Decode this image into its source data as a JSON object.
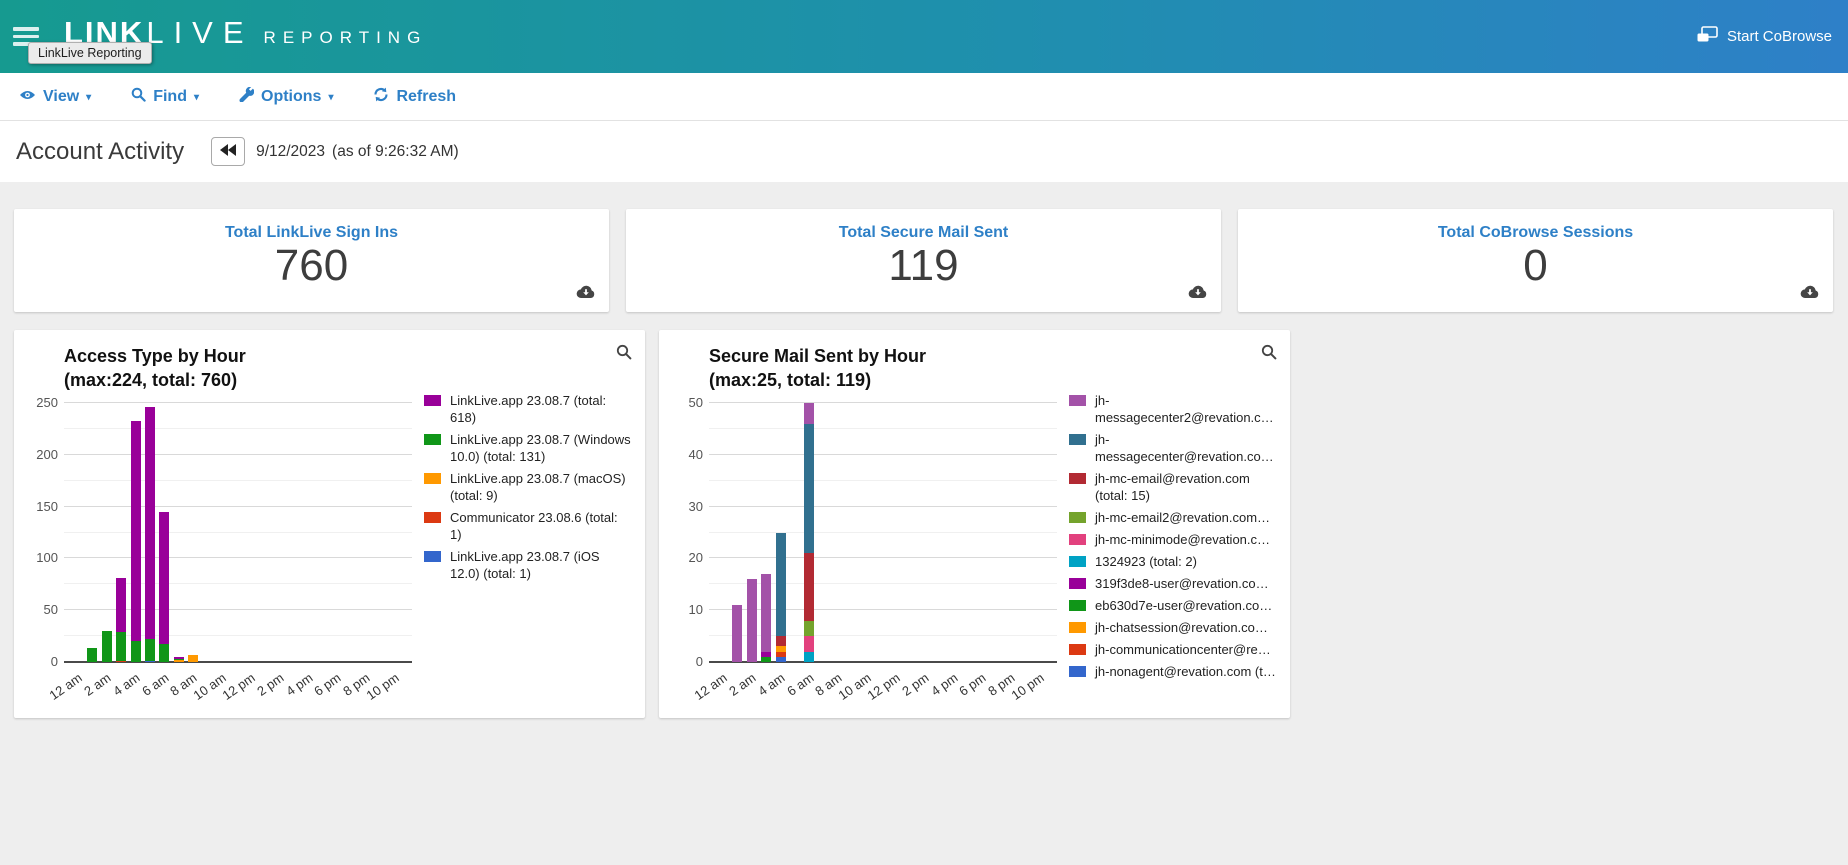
{
  "header": {
    "brand": {
      "part1": "LINK",
      "part2": "LIVE",
      "part3": "REPORTING"
    },
    "tooltip": "LinkLive Reporting",
    "cobrowse_label": "Start CoBrowse"
  },
  "toolbar": {
    "view_label": "View",
    "find_label": "Find",
    "options_label": "Options",
    "refresh_label": "Refresh",
    "caret": "▾"
  },
  "page": {
    "title": "Account Activity",
    "date": "9/12/2023",
    "as_of": "(as of 9:26:32 AM)"
  },
  "stats": [
    {
      "label": "Total LinkLive Sign Ins",
      "value": "760"
    },
    {
      "label": "Total Secure Mail Sent",
      "value": "119"
    },
    {
      "label": "Total CoBrowse Sessions",
      "value": "0"
    }
  ],
  "colors": {
    "header_gradient_left": "#169a90",
    "header_gradient_right": "#2e80c8",
    "link_blue": "#2e80c7",
    "page_background": "#eeeeee"
  },
  "chart_data": [
    {
      "type": "bar",
      "stacked": true,
      "stack_order": "reverse-of-legend",
      "title": "Access Type by Hour",
      "subtitle": "(max:224, total: 760)",
      "ylim": [
        0,
        250
      ],
      "y_tick_step": 50,
      "y_minor_step": 25,
      "grid": true,
      "legend_position": "right",
      "hours": [
        "12 am",
        "1 am",
        "2 am",
        "3 am",
        "4 am",
        "5 am",
        "6 am",
        "7 am",
        "8 am",
        "9 am",
        "10 am",
        "11 am",
        "12 pm",
        "1 pm",
        "2 pm",
        "3 pm",
        "4 pm",
        "5 pm",
        "6 pm",
        "7 pm",
        "8 pm",
        "9 pm",
        "10 pm",
        "11 pm"
      ],
      "x_tick_labels": [
        "12 am",
        "2 am",
        "4 am",
        "6 am",
        "8 am",
        "10 am",
        "12 pm",
        "2 pm",
        "4 pm",
        "6 pm",
        "8 pm",
        "10 pm"
      ],
      "series": [
        {
          "name": "LinkLive.app 23.08.7 (total: 618)",
          "color": "#990099",
          "values": [
            0,
            0,
            0,
            52,
            213,
            224,
            128,
            1,
            0,
            0,
            0,
            0,
            0,
            0,
            0,
            0,
            0,
            0,
            0,
            0,
            0,
            0,
            0,
            0
          ]
        },
        {
          "name": "LinkLive.app 23.08.7 (Windows 10.0) (total: 131)",
          "color": "#109618",
          "values": [
            0,
            14,
            30,
            28,
            20,
            21,
            17,
            1,
            0,
            0,
            0,
            0,
            0,
            0,
            0,
            0,
            0,
            0,
            0,
            0,
            0,
            0,
            0,
            0
          ]
        },
        {
          "name": "LinkLive.app 23.08.7 (macOS) (total: 9)",
          "color": "#ff9900",
          "values": [
            0,
            0,
            0,
            0,
            0,
            0,
            0,
            2,
            7,
            0,
            0,
            0,
            0,
            0,
            0,
            0,
            0,
            0,
            0,
            0,
            0,
            0,
            0,
            0
          ]
        },
        {
          "name": "Communicator 23.08.6 (total: 1)",
          "color": "#dc3912",
          "values": [
            0,
            0,
            0,
            1,
            0,
            0,
            0,
            0,
            0,
            0,
            0,
            0,
            0,
            0,
            0,
            0,
            0,
            0,
            0,
            0,
            0,
            0,
            0,
            0
          ]
        },
        {
          "name": "LinkLive.app 23.08.7 (iOS 12.0) (total: 1)",
          "color": "#3366cc",
          "values": [
            0,
            0,
            0,
            0,
            0,
            1,
            0,
            0,
            0,
            0,
            0,
            0,
            0,
            0,
            0,
            0,
            0,
            0,
            0,
            0,
            0,
            0,
            0,
            0
          ]
        }
      ]
    },
    {
      "type": "bar",
      "stacked": true,
      "stack_order": "reverse-of-legend",
      "title": "Secure Mail Sent by Hour",
      "subtitle": "(max:25, total: 119)",
      "ylim": [
        0,
        50
      ],
      "y_tick_step": 10,
      "y_minor_step": 5,
      "grid": true,
      "legend_position": "right",
      "hours": [
        "12 am",
        "1 am",
        "2 am",
        "3 am",
        "4 am",
        "5 am",
        "6 am",
        "7 am",
        "8 am",
        "9 am",
        "10 am",
        "11 am",
        "12 pm",
        "1 pm",
        "2 pm",
        "3 pm",
        "4 pm",
        "5 pm",
        "6 pm",
        "7 pm",
        "8 pm",
        "9 pm",
        "10 pm",
        "11 pm"
      ],
      "x_tick_labels": [
        "12 am",
        "2 am",
        "4 am",
        "6 am",
        "8 am",
        "10 am",
        "12 pm",
        "2 pm",
        "4 pm",
        "6 pm",
        "8 pm",
        "10 pm"
      ],
      "series": [
        {
          "name": "jh-messagecenter2@revation.c…",
          "color": "#a352a8",
          "values": [
            0,
            11,
            16,
            15,
            0,
            0,
            4,
            0,
            0,
            0,
            0,
            0,
            0,
            0,
            0,
            0,
            0,
            0,
            0,
            0,
            0,
            0,
            0,
            0
          ]
        },
        {
          "name": "jh-messagecenter@revation.co…",
          "color": "#31708f",
          "values": [
            0,
            0,
            0,
            0,
            20,
            0,
            25,
            0,
            0,
            0,
            0,
            0,
            0,
            0,
            0,
            0,
            0,
            0,
            0,
            0,
            0,
            0,
            0,
            0
          ]
        },
        {
          "name": "jh-mc-email@revation.com (total: 15)",
          "color": "#b22a33",
          "values": [
            0,
            0,
            0,
            0,
            2,
            0,
            13,
            0,
            0,
            0,
            0,
            0,
            0,
            0,
            0,
            0,
            0,
            0,
            0,
            0,
            0,
            0,
            0,
            0
          ]
        },
        {
          "name": "jh-mc-email2@revation.com…",
          "color": "#74a32c",
          "values": [
            0,
            0,
            0,
            0,
            0,
            0,
            3,
            0,
            0,
            0,
            0,
            0,
            0,
            0,
            0,
            0,
            0,
            0,
            0,
            0,
            0,
            0,
            0,
            0
          ]
        },
        {
          "name": "jh-mc-minimode@revation.c…",
          "color": "#e2417e",
          "values": [
            0,
            0,
            0,
            0,
            0,
            0,
            3,
            0,
            0,
            0,
            0,
            0,
            0,
            0,
            0,
            0,
            0,
            0,
            0,
            0,
            0,
            0,
            0,
            0
          ]
        },
        {
          "name": "1324923 (total: 2)",
          "color": "#00a2c4",
          "values": [
            0,
            0,
            0,
            0,
            0,
            0,
            2,
            0,
            0,
            0,
            0,
            0,
            0,
            0,
            0,
            0,
            0,
            0,
            0,
            0,
            0,
            0,
            0,
            0
          ]
        },
        {
          "name": "319f3de8-user@revation.co…",
          "color": "#990099",
          "values": [
            0,
            0,
            0,
            1,
            0,
            0,
            0,
            0,
            0,
            0,
            0,
            0,
            0,
            0,
            0,
            0,
            0,
            0,
            0,
            0,
            0,
            0,
            0,
            0
          ]
        },
        {
          "name": "eb630d7e-user@revation.co…",
          "color": "#109618",
          "values": [
            0,
            0,
            0,
            1,
            0,
            0,
            0,
            0,
            0,
            0,
            0,
            0,
            0,
            0,
            0,
            0,
            0,
            0,
            0,
            0,
            0,
            0,
            0,
            0
          ]
        },
        {
          "name": "jh-chatsession@revation.co…",
          "color": "#ff9900",
          "values": [
            0,
            0,
            0,
            0,
            1,
            0,
            0,
            0,
            0,
            0,
            0,
            0,
            0,
            0,
            0,
            0,
            0,
            0,
            0,
            0,
            0,
            0,
            0,
            0
          ]
        },
        {
          "name": "jh-communicationcenter@re…",
          "color": "#dc3912",
          "values": [
            0,
            0,
            0,
            0,
            1,
            0,
            0,
            0,
            0,
            0,
            0,
            0,
            0,
            0,
            0,
            0,
            0,
            0,
            0,
            0,
            0,
            0,
            0,
            0
          ]
        },
        {
          "name": "jh-nonagent@revation.com (t…",
          "color": "#3366cc",
          "values": [
            0,
            0,
            0,
            0,
            1,
            0,
            0,
            0,
            0,
            0,
            0,
            0,
            0,
            0,
            0,
            0,
            0,
            0,
            0,
            0,
            0,
            0,
            0,
            0
          ]
        }
      ]
    }
  ]
}
